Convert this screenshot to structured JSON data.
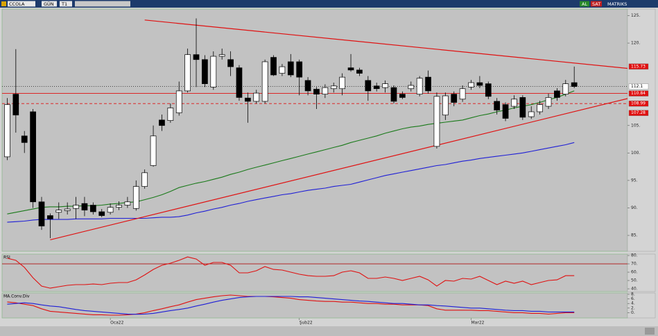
{
  "toolbar": {
    "symbol": "CCOLA",
    "period": "GÜN",
    "template": "T1",
    "buy": "AL",
    "sell": "SAT",
    "brand": "MATRIKS"
  },
  "chart_data": [
    {
      "type": "candlestick",
      "categories": [
        null,
        null,
        null,
        null,
        null,
        null,
        null,
        null,
        null,
        null,
        null,
        null,
        "Oca22",
        null,
        null,
        null,
        null,
        null,
        null,
        null,
        null,
        null,
        null,
        null,
        null,
        null,
        null,
        null,
        null,
        null,
        null,
        null,
        null,
        null,
        "Şub22",
        null,
        null,
        null,
        null,
        null,
        null,
        null,
        null,
        null,
        null,
        null,
        null,
        null,
        null,
        null,
        null,
        null,
        null,
        null,
        "Mar22",
        null,
        null,
        null,
        null,
        null,
        null,
        null,
        null,
        null,
        null,
        null,
        null
      ],
      "open": [
        99.3,
        110.7,
        103.1,
        107.5,
        91.1,
        88.6,
        89.2,
        89.5,
        89.9,
        90.8,
        90.5,
        89.3,
        89.2,
        90.1,
        90.5,
        89.9,
        93.9,
        97.7,
        106.0,
        105.9,
        107.3,
        111.3,
        117.9,
        117.0,
        112.0,
        117.6,
        117.0,
        115.5,
        110.0,
        109.4,
        109.4,
        117.4,
        114.5,
        116.6,
        116.6,
        113.2,
        111.6,
        110.7,
        111.7,
        111.7,
        115.5,
        115.1,
        113.2,
        112.2,
        111.9,
        111.9,
        110.7,
        111.7,
        110.7,
        113.8,
        101.2,
        106.9,
        110.7,
        109.8,
        112.0,
        112.8,
        112.6,
        109.4,
        108.8,
        108.5,
        110.1,
        106.6,
        107.5,
        108.5,
        111.3,
        110.7,
        112.8
      ],
      "high": [
        110.0,
        118.9,
        104.0,
        108.0,
        92.0,
        89.0,
        91.0,
        91.0,
        92.0,
        92.0,
        91.0,
        89.8,
        90.8,
        91.2,
        92.0,
        95.0,
        97.0,
        105.0,
        107.0,
        109.0,
        113.0,
        119.0,
        124.5,
        117.8,
        118.5,
        119.0,
        118.5,
        116.0,
        111.0,
        111.5,
        117.0,
        117.8,
        116.2,
        118.0,
        117.0,
        113.8,
        112.0,
        112.5,
        112.8,
        114.5,
        118.0,
        115.5,
        114.0,
        112.8,
        113.2,
        112.3,
        111.2,
        113.0,
        114.0,
        115.0,
        111.0,
        111.0,
        111.2,
        112.3,
        113.3,
        114.0,
        113.0,
        110.0,
        109.2,
        110.5,
        110.5,
        108.5,
        109.5,
        110.8,
        111.8,
        113.3,
        115.73
      ],
      "low": [
        98.7,
        103.7,
        100.0,
        90.0,
        86.0,
        84.5,
        88.0,
        88.8,
        88.0,
        88.5,
        88.8,
        88.3,
        88.8,
        89.6,
        90.0,
        89.5,
        93.5,
        97.5,
        104.0,
        105.5,
        106.8,
        111.0,
        112.0,
        112.0,
        111.5,
        117.0,
        114.0,
        109.5,
        105.5,
        109.0,
        109.0,
        114.0,
        114.0,
        113.8,
        110.5,
        110.5,
        108.0,
        110.0,
        111.0,
        110.5,
        114.8,
        114.0,
        109.5,
        111.2,
        111.0,
        109.0,
        109.8,
        111.2,
        110.3,
        110.8,
        100.8,
        106.0,
        108.5,
        109.3,
        111.5,
        111.8,
        109.8,
        107.0,
        105.8,
        108.0,
        106.0,
        106.2,
        107.0,
        108.0,
        109.5,
        110.3,
        111.8
      ],
      "close": [
        108.8,
        106.9,
        101.9,
        91.1,
        86.7,
        88.0,
        89.6,
        89.8,
        90.5,
        89.6,
        89.3,
        88.6,
        90.1,
        90.5,
        91.1,
        93.9,
        96.4,
        103.1,
        105.0,
        108.2,
        111.3,
        117.9,
        117.0,
        112.6,
        117.6,
        117.9,
        115.7,
        110.1,
        109.4,
        110.9,
        116.6,
        114.2,
        115.7,
        114.2,
        113.8,
        111.3,
        110.7,
        111.9,
        112.2,
        113.8,
        115.1,
        114.5,
        111.3,
        111.7,
        112.6,
        109.4,
        110.1,
        112.3,
        113.6,
        111.3,
        110.3,
        110.4,
        109.2,
        111.7,
        112.8,
        112.3,
        110.3,
        107.8,
        106.3,
        109.8,
        106.5,
        107.5,
        108.8,
        110.1,
        110.1,
        112.6,
        112.1
      ],
      "up_color": "#ffffff",
      "down_color": "#000000",
      "series": [
        {
          "color": "#1a7a1a",
          "values": [
            88.9,
            89.2,
            89.5,
            89.8,
            90.1,
            90.2,
            90.2,
            90.3,
            90.3,
            90.4,
            90.4,
            90.5,
            90.7,
            90.8,
            91.0,
            91.1,
            91.5,
            91.9,
            92.4,
            93.0,
            93.7,
            94.1,
            94.5,
            94.8,
            95.2,
            95.6,
            96.1,
            96.5,
            97.0,
            97.4,
            97.8,
            98.2,
            98.6,
            99.0,
            99.4,
            99.8,
            100.2,
            100.6,
            101.0,
            101.4,
            101.9,
            102.3,
            102.7,
            103.1,
            103.6,
            104.0,
            104.4,
            104.7,
            104.9,
            105.2,
            105.4,
            105.6,
            105.8,
            106.0,
            106.4,
            106.8,
            107.1,
            107.5,
            107.8,
            108.2,
            108.5,
            108.8,
            109.2,
            109.7,
            110.1,
            110.7,
            111.3
          ]
        },
        {
          "color": "#1f1fd6",
          "values": [
            87.4,
            87.5,
            87.6,
            87.8,
            87.9,
            87.9,
            87.9,
            87.9,
            88.0,
            88.0,
            88.0,
            88.0,
            88.1,
            88.1,
            88.1,
            88.1,
            88.1,
            88.2,
            88.3,
            88.3,
            88.4,
            88.7,
            89.1,
            89.4,
            89.8,
            90.1,
            90.5,
            90.8,
            91.2,
            91.5,
            91.8,
            92.1,
            92.4,
            92.6,
            92.9,
            93.2,
            93.4,
            93.6,
            93.9,
            94.1,
            94.3,
            94.7,
            95.1,
            95.5,
            95.9,
            96.2,
            96.5,
            96.8,
            97.1,
            97.4,
            97.7,
            97.9,
            98.2,
            98.5,
            98.7,
            99.0,
            99.2,
            99.4,
            99.6,
            99.8,
            100.0,
            100.3,
            100.6,
            100.9,
            101.2,
            101.5,
            101.9
          ]
        }
      ],
      "trendlines": [
        {
          "color": "#e01010",
          "x": [
            16,
            72.2
          ],
          "y": [
            124.2,
            115.4
          ]
        },
        {
          "color": "#e01010",
          "x": [
            5,
            72.2
          ],
          "y": [
            84.2,
            109.9
          ]
        }
      ],
      "price_levels": [
        {
          "value": 115.73,
          "color": "#e01010",
          "line": "none",
          "line_color": "#e01010"
        },
        {
          "value": 112.1,
          "color": "#ffffff",
          "line": "dotted",
          "line_color": "#333333"
        },
        {
          "value": 110.84,
          "color": "#e01010",
          "line": "solid",
          "line_color": "#e01010"
        },
        {
          "value": 108.99,
          "color": "#e01010",
          "line": "dashed",
          "line_color": "#e01010"
        },
        {
          "value": 107.28,
          "color": "#e01010",
          "line": "none",
          "line_color": "#e01010"
        }
      ],
      "xlim": [
        -0.6,
        72.2
      ],
      "ylim": [
        82.1,
        126.2
      ],
      "yticks": [
        {
          "value": 85,
          "label": "85."
        },
        {
          "value": 90,
          "label": "90."
        },
        {
          "value": 95,
          "label": "95."
        },
        {
          "value": 100,
          "label": "100."
        },
        {
          "value": 105,
          "label": "105."
        },
        {
          "value": 120,
          "label": "120."
        },
        {
          "value": 125,
          "label": "125."
        }
      ]
    },
    {
      "type": "line",
      "title": "RSI",
      "series": [
        {
          "color": "#e01010",
          "values": [
            76.7,
            74.2,
            65.8,
            53.3,
            43.3,
            40.8,
            42.5,
            44.2,
            45,
            45,
            45.8,
            45,
            46.7,
            47.5,
            47.5,
            50.8,
            56.7,
            63.3,
            68.3,
            70.8,
            74.2,
            78.3,
            75.8,
            68.3,
            71.7,
            71.7,
            68.3,
            59.2,
            59.2,
            61.7,
            66.7,
            63.3,
            62.5,
            60,
            57.5,
            55.8,
            55,
            55,
            55.8,
            60,
            61.7,
            59.2,
            52.5,
            52.5,
            54.2,
            52.5,
            50,
            52.5,
            55,
            50.8,
            43.3,
            50,
            49.2,
            52.5,
            51.7,
            55,
            50,
            45,
            49.2,
            46.7,
            49.2,
            45,
            47.5,
            50,
            50.8,
            55.8,
            55.8
          ]
        }
      ],
      "reference_lines": [
        {
          "value": 70,
          "color": "#b01010"
        }
      ],
      "xlim": [
        -0.6,
        72.2
      ],
      "ylim": [
        36.7,
        81.7
      ],
      "yticks": [
        {
          "value": 40,
          "label": "40."
        },
        {
          "value": 50,
          "label": "50."
        },
        {
          "value": 60,
          "label": "60."
        },
        {
          "value": 70,
          "label": "70."
        },
        {
          "value": 80,
          "label": "80."
        }
      ]
    },
    {
      "type": "line",
      "title": "MA.Conv.Div",
      "series": [
        {
          "color": "#e01010",
          "values": [
            4.7,
            4.3,
            3.7,
            3.1,
            1.7,
            0.6,
            0.3,
            0,
            -0.3,
            -0.6,
            -0.9,
            -0.9,
            -1.1,
            -1.1,
            -0.9,
            -0.6,
            0,
            0.9,
            1.7,
            2.6,
            3.4,
            4.6,
            5.7,
            6.3,
            6.9,
            7.4,
            7.7,
            7.4,
            7.1,
            7.1,
            7.1,
            6.9,
            6.6,
            6.3,
            5.7,
            5.4,
            5.1,
            4.9,
            4.9,
            4.6,
            4.6,
            4.3,
            4,
            4,
            3.7,
            3.7,
            3.4,
            3.4,
            3.4,
            3.1,
            1.7,
            1.1,
            1.1,
            1.1,
            1.1,
            0.9,
            0.9,
            0.6,
            0.3,
            0,
            0,
            -0.3,
            -0.3,
            -0.6,
            -0.3,
            0,
            0
          ]
        },
        {
          "color": "#1f1fd6",
          "values": [
            3.7,
            4,
            4.3,
            4,
            3.4,
            2.9,
            2.6,
            2,
            1.4,
            0.9,
            0.6,
            0.3,
            0,
            -0.3,
            -0.6,
            -0.7,
            -0.6,
            -0.3,
            0.3,
            0.9,
            1.4,
            2,
            2.9,
            3.7,
            4.6,
            5.4,
            6,
            6.6,
            6.9,
            7.1,
            7.1,
            7.1,
            7.1,
            7.1,
            6.9,
            6.9,
            6.6,
            6.3,
            6,
            5.7,
            5.4,
            5.1,
            4.9,
            4.6,
            4.3,
            4,
            4,
            3.7,
            3.4,
            3.4,
            3.1,
            2.9,
            2.6,
            2.3,
            2,
            2,
            1.7,
            1.4,
            1.1,
            0.9,
            0.9,
            0.6,
            0.6,
            0.3,
            0.3,
            0.3,
            0.3
          ]
        }
      ],
      "xlim": [
        -0.6,
        72.2
      ],
      "ylim": [
        -2.3,
        8.6
      ],
      "yticks": [
        {
          "value": 0,
          "label": "0."
        },
        {
          "value": 2,
          "label": "2."
        },
        {
          "value": 4,
          "label": "4."
        },
        {
          "value": 6,
          "label": "6."
        },
        {
          "value": 8,
          "label": "8."
        }
      ]
    }
  ]
}
